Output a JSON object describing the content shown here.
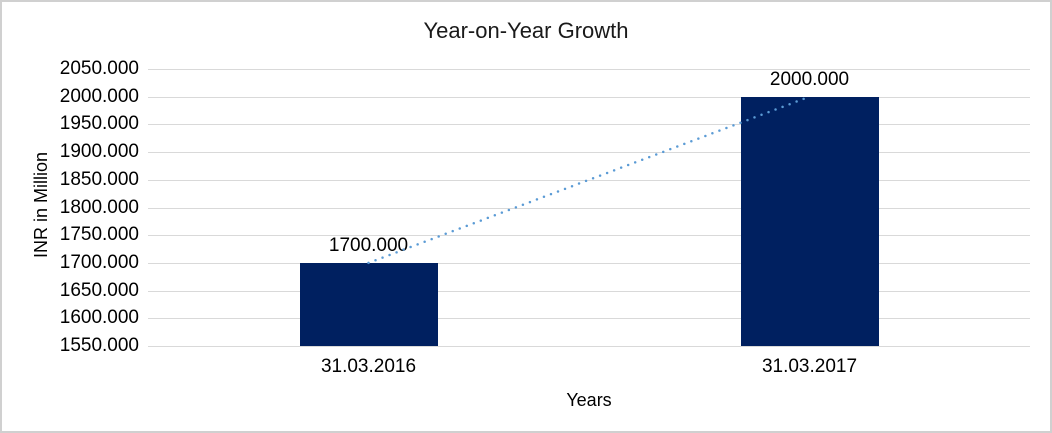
{
  "frame": {
    "background": "#FFFFFF",
    "border_color": "#D0D0D0"
  },
  "chart_data": {
    "type": "bar",
    "title": "Year-on-Year Growth",
    "xlabel": "Years",
    "ylabel": "INR in Million",
    "categories": [
      "31.03.2016",
      "31.03.2017"
    ],
    "series": [
      {
        "name": "INR in Million",
        "values": [
          1700,
          2000
        ]
      }
    ],
    "data_labels": [
      "1700.000",
      "2000.000"
    ],
    "ylim": [
      1550,
      2050
    ],
    "ytick_step": 50,
    "ytick_labels": [
      "2050.000",
      "2000.000",
      "1950.000",
      "1900.000",
      "1850.000",
      "1800.000",
      "1750.000",
      "1700.000",
      "1650.000",
      "1600.000",
      "1550.000"
    ],
    "grid": true,
    "legend_position": "none",
    "bar_color": "#002060",
    "gridline_color": "#D9D9D9",
    "text_color": "#000000",
    "trendline": {
      "style": "dotted",
      "color": "#5B9BD5",
      "from_value": 1700,
      "to_value": 2000
    }
  }
}
